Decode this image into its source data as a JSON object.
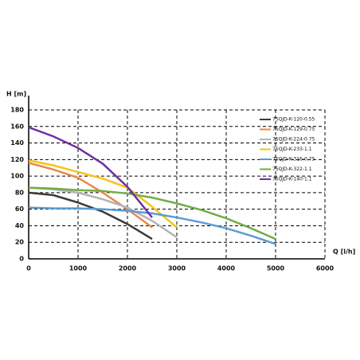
{
  "chart_data": {
    "type": "line",
    "x_label": "Q [l/h]",
    "y_label": "H [m]",
    "x": [
      0,
      500,
      1000,
      1500,
      2000,
      2500,
      3000,
      3500,
      4000,
      4500,
      5000
    ],
    "series": [
      {
        "name": "75QJD-K-120-0.55",
        "color": "#3a3a3a",
        "values": [
          80,
          77,
          68,
          57,
          42,
          24,
          null,
          null,
          null,
          null,
          null
        ]
      },
      {
        "name": "75QJD-K-129-0.75",
        "color": "#e8894a",
        "values": [
          116,
          108,
          98,
          80,
          60,
          38,
          null,
          null,
          null,
          null,
          null
        ]
      },
      {
        "name": "75QJD-K-224-0.75",
        "color": "#b4b4b4",
        "values": [
          86,
          84,
          80,
          72,
          62,
          46,
          26,
          null,
          null,
          null,
          null
        ]
      },
      {
        "name": "75QJD-K-233-1.1",
        "color": "#f5c518",
        "values": [
          119,
          113,
          105,
          97,
          86,
          63,
          38,
          null,
          null,
          null,
          null
        ]
      },
      {
        "name": "75QJD-K-316-0.75",
        "color": "#5b9bd5",
        "values": [
          62,
          61,
          61,
          60,
          58,
          55,
          50,
          44,
          37,
          28,
          18
        ]
      },
      {
        "name": "75QJD-K-322-1.1",
        "color": "#70ad47",
        "values": [
          86,
          85,
          83,
          82,
          79,
          74,
          67,
          59,
          49,
          37,
          24
        ]
      },
      {
        "name": "75QJD-K-140-1.1",
        "color": "#7030a0",
        "values": [
          159,
          148,
          134,
          115,
          87,
          50,
          null,
          null,
          null,
          null,
          null
        ]
      }
    ],
    "xlim": [
      0,
      6000
    ],
    "xticks": [
      0,
      1000,
      2000,
      3000,
      4000,
      5000,
      6000
    ],
    "ylim": [
      0,
      180
    ],
    "yticks": [
      0,
      20,
      40,
      60,
      80,
      100,
      120,
      140,
      160,
      180
    ],
    "grid": true,
    "legend": "upper right"
  }
}
